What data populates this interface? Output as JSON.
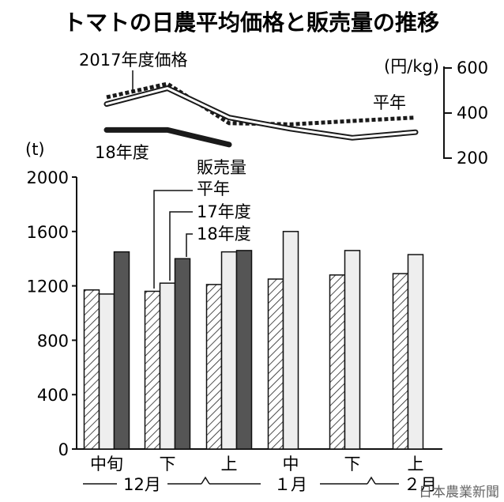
{
  "chart_data": {
    "title": "トマトの日農平均価格と販売量の推移",
    "price_chart": {
      "type": "line",
      "unit": "(円/kg)",
      "yticks": [
        600,
        400,
        200
      ],
      "ylim": [
        200,
        600
      ],
      "annotations": {
        "p2017": "2017年度価格",
        "normal": "平年",
        "p2018": "18年度"
      },
      "series": [
        {
          "key": "p2017",
          "style": "dotted",
          "color": "#1a1a1a",
          "x": [
            0,
            1,
            2,
            3,
            4,
            5
          ],
          "values": [
            470,
            530,
            355,
            350,
            365,
            380
          ]
        },
        {
          "key": "normal",
          "style": "outline",
          "color": "#777777",
          "x": [
            0,
            1,
            2,
            3,
            4,
            5
          ],
          "values": [
            440,
            510,
            380,
            330,
            290,
            315
          ]
        },
        {
          "key": "p2018",
          "style": "thick",
          "color": "#1a1a1a",
          "x": [
            0,
            1,
            2
          ],
          "values": [
            325,
            325,
            260
          ]
        }
      ]
    },
    "volume_chart": {
      "type": "bar",
      "unit": "(t)",
      "yticks": [
        2000,
        1600,
        1200,
        800,
        400,
        0
      ],
      "ylim": [
        0,
        2000
      ],
      "categories": [
        "中旬",
        "下",
        "上",
        "中",
        "下",
        "上"
      ],
      "month_groups": [
        "12月",
        "１月",
        "２月"
      ],
      "legend_title": "販売量",
      "series": [
        {
          "name": "平年",
          "pattern": "hatch",
          "values": [
            1170,
            1160,
            1210,
            1250,
            1280,
            1290
          ]
        },
        {
          "name": "17年度",
          "pattern": "light",
          "values": [
            1140,
            1220,
            1450,
            1600,
            1460,
            1430
          ]
        },
        {
          "name": "18年度",
          "pattern": "dark",
          "values": [
            1450,
            1400,
            1460,
            null,
            null,
            null
          ]
        }
      ]
    },
    "credit": "日本農業新聞"
  }
}
